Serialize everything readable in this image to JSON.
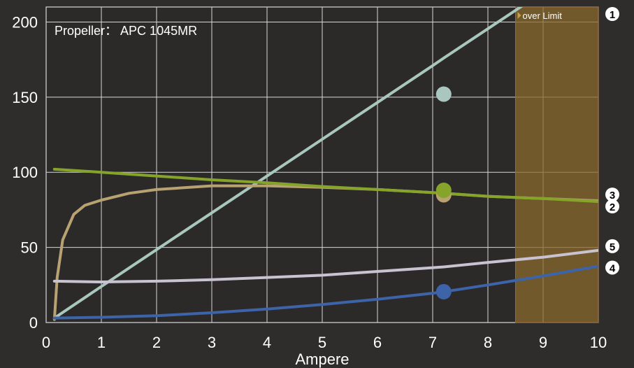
{
  "chart_data": {
    "type": "line",
    "annotation": "Propeller： APC 1045MR",
    "xlabel": "Ampere",
    "ylabel": "",
    "xlim": [
      0,
      10
    ],
    "ylim": [
      0,
      210
    ],
    "x_ticks": [
      "0",
      "1",
      "2",
      "3",
      "4",
      "5",
      "6",
      "7",
      "8",
      "9",
      "10"
    ],
    "y_ticks": [
      "0",
      "50",
      "100",
      "150",
      "200"
    ],
    "grid": true,
    "over_limit": {
      "label": "over Limit",
      "from": 8.5,
      "to": 10,
      "color": "#8a6a2e"
    },
    "marker_x": 7.2,
    "series": [
      {
        "id": "1",
        "color": "#a9c7bf",
        "x": [
          0.15,
          1,
          2,
          3,
          4,
          5,
          6,
          7,
          7.2,
          8,
          9,
          10
        ],
        "y": [
          3,
          24,
          48.5,
          73,
          97.5,
          122,
          146.5,
          171,
          176,
          195.5,
          220,
          244.5
        ],
        "marker": 152
      },
      {
        "id": "2",
        "color": "#b8a272",
        "x": [
          0.15,
          0.2,
          0.3,
          0.5,
          0.7,
          1,
          1.5,
          2,
          3,
          4,
          5,
          6,
          7,
          7.2,
          8,
          9,
          10
        ],
        "y": [
          2,
          30,
          55,
          72,
          78,
          81.5,
          86,
          88.5,
          91,
          91,
          90,
          88.5,
          86.5,
          86,
          84,
          82.5,
          81
        ],
        "marker": 85
      },
      {
        "id": "3",
        "color": "#86a32a",
        "x": [
          0.15,
          1,
          2,
          3,
          4,
          5,
          6,
          7,
          7.2,
          8,
          9,
          10
        ],
        "y": [
          102,
          100,
          97.5,
          95,
          93,
          90.5,
          88.5,
          86.5,
          86,
          84,
          82.5,
          80.5
        ],
        "marker": 88
      },
      {
        "id": "4",
        "color": "#3d63a8",
        "x": [
          0.15,
          1,
          2,
          3,
          4,
          5,
          6,
          7,
          7.2,
          8,
          9,
          10
        ],
        "y": [
          3,
          3.5,
          4.5,
          6.5,
          9,
          12,
          15.5,
          19.5,
          20.5,
          25,
          31,
          37.5
        ],
        "marker": 20.5
      },
      {
        "id": "5",
        "color": "#c9c3d1",
        "x": [
          0.15,
          1,
          2,
          3,
          4,
          5,
          6,
          7,
          7.2,
          8,
          9,
          10
        ],
        "y": [
          27.5,
          27,
          27.5,
          28.5,
          30,
          31.5,
          34,
          36.5,
          37,
          40,
          43.5,
          48
        ],
        "marker": null
      }
    ]
  }
}
